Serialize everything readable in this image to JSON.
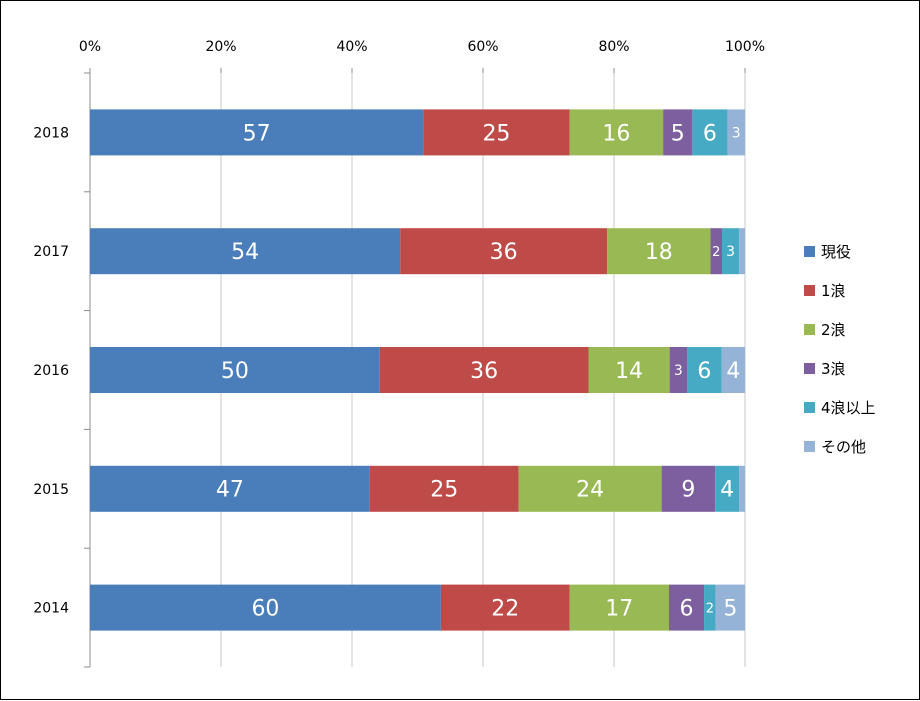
{
  "chart_data": {
    "type": "bar",
    "orientation": "horizontal",
    "stacked": "percent",
    "categories": [
      "2018",
      "2017",
      "2016",
      "2015",
      "2014"
    ],
    "series": [
      {
        "name": "現役",
        "color": "#4A7EBB",
        "values": [
          57,
          54,
          50,
          47,
          60
        ],
        "labels": [
          "57",
          "54",
          "50",
          "47",
          "60"
        ]
      },
      {
        "name": "1浪",
        "color": "#BE4B48",
        "values": [
          25,
          36,
          36,
          25,
          22
        ],
        "labels": [
          "25",
          "36",
          "36",
          "25",
          "22"
        ]
      },
      {
        "name": "2浪",
        "color": "#98B954",
        "values": [
          16,
          18,
          14,
          24,
          17
        ],
        "labels": [
          "16",
          "18",
          "14",
          "24",
          "17"
        ]
      },
      {
        "name": "3浪",
        "color": "#7D5FA0",
        "values": [
          5,
          2,
          3,
          9,
          6
        ],
        "labels": [
          "5",
          "2",
          "3",
          "9",
          "6"
        ]
      },
      {
        "name": "4浪以上",
        "color": "#46AAC5",
        "values": [
          6,
          3,
          6,
          4,
          2
        ],
        "labels": [
          "6",
          "3",
          "6",
          "4",
          "2"
        ]
      },
      {
        "name": "その他",
        "color": "#95B3D7",
        "values": [
          3,
          1,
          4,
          1,
          5
        ],
        "labels": [
          "3",
          "",
          "4",
          "",
          "5"
        ]
      }
    ],
    "xaxis": {
      "ticks": [
        "0%",
        "20%",
        "40%",
        "60%",
        "80%",
        "100%"
      ],
      "range": [
        0,
        100
      ],
      "position": "top"
    },
    "grid": true,
    "legend": "right"
  }
}
